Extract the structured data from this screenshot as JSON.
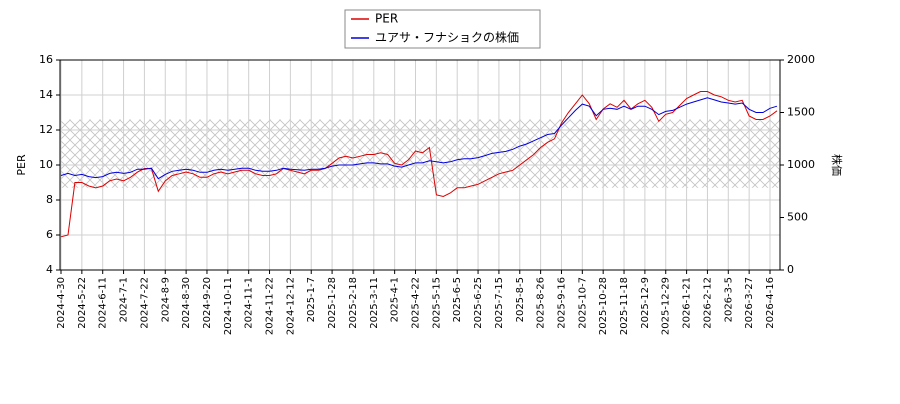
{
  "chart_data": {
    "type": "line",
    "y_label": "PER",
    "y2_label": "株価",
    "categories": [
      "2024-4-30",
      null,
      null,
      "2024-5-22",
      null,
      null,
      "2024-6-11",
      null,
      null,
      "2024-7-1",
      null,
      null,
      "2024-7-22",
      null,
      null,
      "2024-8-9",
      null,
      null,
      "2024-8-30",
      null,
      null,
      "2024-9-20",
      null,
      null,
      "2024-10-11",
      null,
      null,
      "2024-11-1",
      null,
      null,
      "2024-11-22",
      null,
      null,
      "2024-12-12",
      null,
      null,
      "2025-1-7",
      null,
      null,
      "2025-1-28",
      null,
      null,
      "2025-2-18",
      null,
      null,
      "2025-3-11",
      null,
      null,
      "2025-4-1",
      null,
      null,
      "2025-4-22",
      null,
      null,
      "2025-5-15",
      null,
      null,
      "2025-6-5",
      null,
      null,
      "2025-6-25",
      null,
      null,
      "2025-7-15",
      null,
      null,
      "2025-8-5",
      null,
      null,
      "2025-8-26",
      null,
      null,
      "2025-9-16",
      null,
      null,
      "2025-10-7",
      null,
      null,
      "2025-10-28",
      null,
      null,
      "2025-11-18",
      null,
      null,
      "2025-12-9",
      null,
      null,
      "2025-12-29",
      null,
      null,
      "2026-1-21",
      null,
      null,
      "2026-2-12",
      null,
      null,
      "2026-3-5",
      null,
      null,
      "2026-3-27",
      null,
      null,
      "2026-4-16",
      null
    ],
    "series": [
      {
        "name": "PER",
        "color": "#dd0000",
        "axis": "y",
        "values": [
          5.9,
          6.0,
          9.0,
          9.0,
          8.8,
          8.7,
          8.8,
          9.1,
          9.2,
          9.1,
          9.3,
          9.6,
          9.8,
          9.8,
          8.5,
          9.1,
          9.4,
          9.5,
          9.6,
          9.5,
          9.3,
          9.3,
          9.5,
          9.6,
          9.5,
          9.6,
          9.7,
          9.7,
          9.5,
          9.4,
          9.4,
          9.5,
          9.8,
          9.7,
          9.6,
          9.5,
          9.7,
          9.7,
          9.8,
          10.1,
          10.4,
          10.5,
          10.4,
          10.5,
          10.6,
          10.6,
          10.7,
          10.6,
          10.1,
          10.0,
          10.3,
          10.8,
          10.7,
          11.0,
          8.3,
          8.2,
          8.4,
          8.7,
          8.7,
          8.8,
          8.9,
          9.1,
          9.3,
          9.5,
          9.6,
          9.7,
          10.0,
          10.3,
          10.6,
          11.0,
          11.3,
          11.5,
          12.4,
          13.0,
          13.5,
          14.0,
          13.5,
          12.6,
          13.2,
          13.5,
          13.3,
          13.7,
          13.2,
          13.5,
          13.7,
          13.3,
          12.5,
          12.9,
          13.0,
          13.4,
          13.8,
          14.0,
          14.2,
          14.2,
          14.0,
          13.9,
          13.7,
          13.6,
          13.7,
          12.8,
          12.6,
          12.6,
          12.8,
          13.1
        ]
      },
      {
        "name": "ユアサ・フナショクの株価",
        "color": "#0000dd",
        "axis": "y2",
        "values": [
          900,
          920,
          900,
          910,
          890,
          880,
          890,
          920,
          930,
          920,
          930,
          960,
          960,
          970,
          870,
          910,
          940,
          950,
          960,
          950,
          930,
          930,
          950,
          960,
          950,
          960,
          970,
          970,
          950,
          940,
          940,
          950,
          970,
          960,
          955,
          950,
          960,
          960,
          970,
          990,
          1000,
          1000,
          1000,
          1010,
          1020,
          1020,
          1010,
          1010,
          990,
          980,
          1000,
          1020,
          1020,
          1040,
          1030,
          1020,
          1030,
          1050,
          1060,
          1060,
          1070,
          1090,
          1110,
          1120,
          1130,
          1150,
          1180,
          1200,
          1230,
          1260,
          1290,
          1300,
          1380,
          1450,
          1520,
          1580,
          1560,
          1470,
          1530,
          1540,
          1530,
          1560,
          1530,
          1560,
          1560,
          1530,
          1480,
          1510,
          1520,
          1550,
          1580,
          1600,
          1620,
          1640,
          1620,
          1600,
          1590,
          1580,
          1590,
          1530,
          1500,
          1500,
          1540,
          1560
        ]
      }
    ],
    "band": [
      8.7,
      12.6
    ],
    "ylim": [
      4,
      16
    ],
    "yticks": [
      4,
      6,
      8,
      10,
      12,
      14,
      16
    ],
    "y2lim": [
      0,
      2000
    ],
    "y2ticks": [
      0,
      500,
      1000,
      1500,
      2000
    ],
    "grid": true,
    "legend": "top"
  }
}
